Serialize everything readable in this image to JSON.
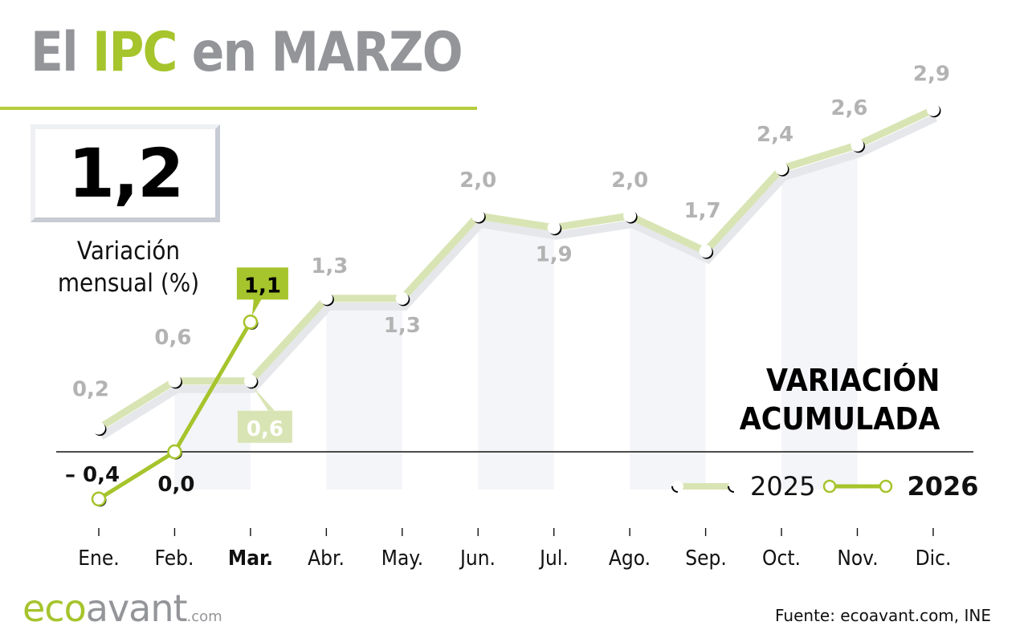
{
  "header": {
    "title_part1": "El ",
    "title_highlight": "IPC",
    "title_part2": " en MARZO"
  },
  "kpi": {
    "value": "1,2",
    "label_line1": "Variación",
    "label_line2": "mensual (%)"
  },
  "section_title": {
    "line1": "VARIACIÓN",
    "line2": "ACUMULADA"
  },
  "legend": {
    "series_2025": "2025",
    "series_2026": "2026"
  },
  "footer": {
    "logo_eco": "eco",
    "logo_avant": "avant",
    "logo_com": ".com",
    "source": "Fuente: ecoavant.com, INE"
  },
  "colors": {
    "accent_green": "#a6c42c",
    "light_green": "#d9e4b4",
    "title_gray": "#939598",
    "label_gray": "#b3b3b3"
  },
  "chart_data": {
    "type": "line",
    "title": "El IPC en MARZO — Variación acumulada",
    "xlabel": "",
    "ylabel": "%",
    "categories": [
      "Ene.",
      "Feb.",
      "Mar.",
      "Abr.",
      "May.",
      "Jun.",
      "Jul.",
      "Ago.",
      "Sep.",
      "Oct.",
      "Nov.",
      "Dic."
    ],
    "highlighted_category": "Mar.",
    "series": [
      {
        "name": "2025",
        "values": [
          0.2,
          0.6,
          0.6,
          1.3,
          1.3,
          2.0,
          1.9,
          2.0,
          1.7,
          2.4,
          2.6,
          2.9
        ],
        "labels": [
          "0,2",
          "0,6",
          "0,6",
          "1,3",
          "1,3",
          "2,0",
          "1,9",
          "2,0",
          "1,7",
          "2,4",
          "2,6",
          "2,9"
        ]
      },
      {
        "name": "2026",
        "values": [
          -0.4,
          0.0,
          1.1
        ],
        "labels": [
          "– 0,4",
          "0,0",
          "1,1"
        ]
      }
    ],
    "annotations": [
      {
        "text": "1,2",
        "meaning": "Variación mensual (%) marzo 2026"
      }
    ],
    "ylim": [
      -0.5,
      3.0
    ],
    "grid": false,
    "legend_position": "lower-right"
  }
}
